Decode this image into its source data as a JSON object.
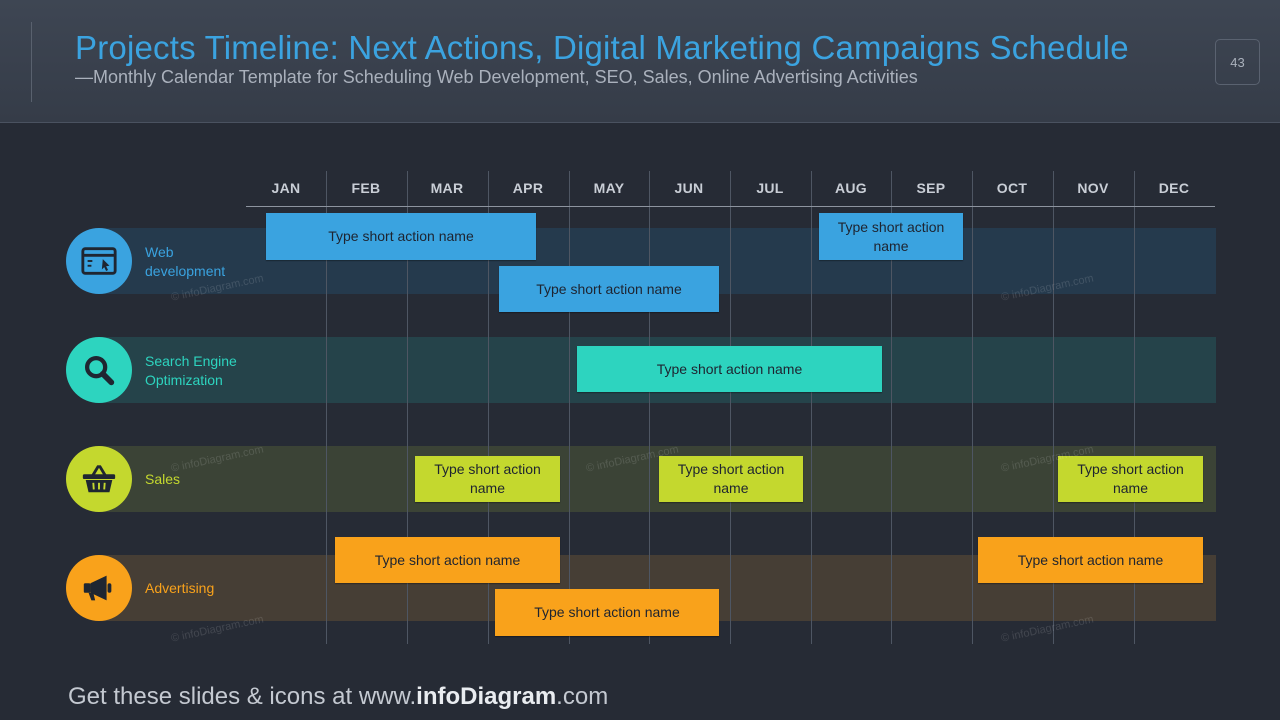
{
  "header": {
    "title": "Projects Timeline: Next Actions, Digital Marketing Campaigns Schedule",
    "subtitle": "—Monthly Calendar Template for Scheduling Web Development, SEO, Sales, Online Advertising Activities",
    "page_number": "43"
  },
  "months": [
    "JAN",
    "FEB",
    "MAR",
    "APR",
    "MAY",
    "JUN",
    "JUL",
    "AUG",
    "SEP",
    "OCT",
    "NOV",
    "DEC"
  ],
  "rows": [
    {
      "id": "web",
      "label": "Web development",
      "icon": "browser-window-icon",
      "color": "#3aa3e0",
      "band_color": "#253a4d",
      "actions": [
        {
          "label": "Type short action name"
        },
        {
          "label": "Type short action name"
        },
        {
          "label": "Type short action name"
        }
      ]
    },
    {
      "id": "seo",
      "label": "Search Engine Optimization",
      "icon": "magnifier-icon",
      "color": "#2dd4bf",
      "band_color": "#25434a",
      "actions": [
        {
          "label": "Type short action name"
        }
      ]
    },
    {
      "id": "sales",
      "label": "Sales",
      "icon": "basket-icon",
      "color": "#c4d82e",
      "band_color": "#3b4336",
      "actions": [
        {
          "label": "Type short action name"
        },
        {
          "label": "Type short action name"
        },
        {
          "label": "Type short action name"
        }
      ]
    },
    {
      "id": "ads",
      "label": "Advertising",
      "icon": "megaphone-icon",
      "color": "#f9a21b",
      "band_color": "#463e35",
      "actions": [
        {
          "label": "Type short action name"
        },
        {
          "label": "Type short action name"
        },
        {
          "label": "Type short action name"
        }
      ]
    }
  ],
  "watermark": "© infoDiagram.com",
  "footer": {
    "prefix": "Get these slides & icons at www.",
    "brand": "infoDiagram",
    "suffix": ".com"
  }
}
